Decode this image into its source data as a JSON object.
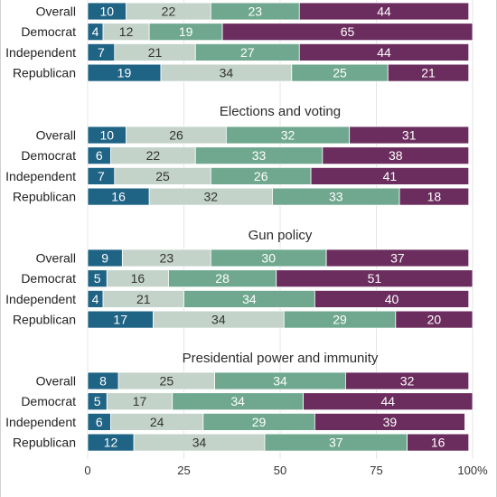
{
  "chart_data": {
    "type": "bar",
    "orientation": "horizontal",
    "stacked": true,
    "xlim": [
      0,
      100
    ],
    "x_ticks": [
      0,
      25,
      50,
      75,
      100
    ],
    "x_tick_labels": [
      "0",
      "25",
      "50",
      "75",
      "100%"
    ],
    "categories": [
      "Overall",
      "Democrat",
      "Independent",
      "Republican"
    ],
    "segment_colors": [
      "#1f6385",
      "#c3d3c9",
      "#6fa88e",
      "#6b2d5e"
    ],
    "segment_text_colors": [
      "#ffffff",
      "#333333",
      "#ffffff",
      "#ffffff"
    ],
    "grid": true,
    "legend": "none",
    "panels": [
      {
        "title": "",
        "rows": [
          {
            "label": "Overall",
            "values": [
              10,
              22,
              23,
              44
            ]
          },
          {
            "label": "Democrat",
            "values": [
              4,
              12,
              19,
              65
            ]
          },
          {
            "label": "Independent",
            "values": [
              7,
              21,
              27,
              44
            ]
          },
          {
            "label": "Republican",
            "values": [
              19,
              34,
              25,
              21
            ]
          }
        ]
      },
      {
        "title": "Elections and voting",
        "rows": [
          {
            "label": "Overall",
            "values": [
              10,
              26,
              32,
              31
            ]
          },
          {
            "label": "Democrat",
            "values": [
              6,
              22,
              33,
              38
            ]
          },
          {
            "label": "Independent",
            "values": [
              7,
              25,
              26,
              41
            ]
          },
          {
            "label": "Republican",
            "values": [
              16,
              32,
              33,
              18
            ]
          }
        ]
      },
      {
        "title": "Gun policy",
        "rows": [
          {
            "label": "Overall",
            "values": [
              9,
              23,
              30,
              37
            ]
          },
          {
            "label": "Democrat",
            "values": [
              5,
              16,
              28,
              51
            ]
          },
          {
            "label": "Independent",
            "values": [
              4,
              21,
              34,
              40
            ]
          },
          {
            "label": "Republican",
            "values": [
              17,
              34,
              29,
              20
            ]
          }
        ]
      },
      {
        "title": "Presidential power and immunity",
        "rows": [
          {
            "label": "Overall",
            "values": [
              8,
              25,
              34,
              32
            ]
          },
          {
            "label": "Democrat",
            "values": [
              5,
              17,
              34,
              44
            ]
          },
          {
            "label": "Independent",
            "values": [
              6,
              24,
              29,
              39
            ]
          },
          {
            "label": "Republican",
            "values": [
              12,
              34,
              37,
              16
            ]
          }
        ]
      }
    ]
  }
}
